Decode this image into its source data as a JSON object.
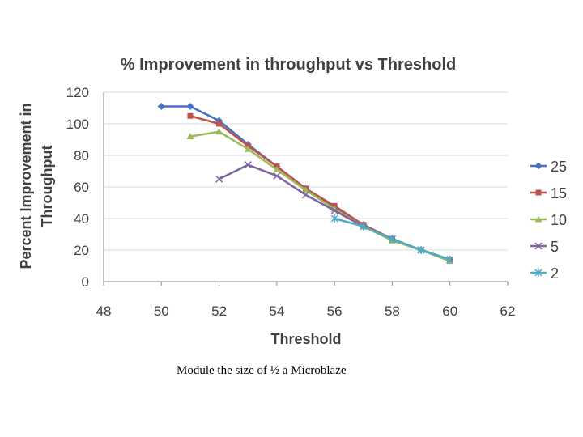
{
  "caption": "Module the size of ½ a Microblaze",
  "colors": {
    "25": "#4472c4",
    "15": "#c0504d",
    "10": "#9bbb59",
    "5": "#8064a2",
    "2": "#4bacc6",
    "grid": "#d9d9d9",
    "text": "#404040"
  },
  "chart_data": {
    "type": "line",
    "title": "% Improvement in throughput vs Threshold",
    "xlabel": "Threshold",
    "ylabel_lines": [
      "Percent Improvement in",
      "Throughput"
    ],
    "xlim": [
      48,
      62
    ],
    "ylim": [
      0,
      120
    ],
    "x_ticks": [
      "48",
      "50",
      "52",
      "54",
      "56",
      "58",
      "60",
      "62"
    ],
    "y_ticks": [
      "0",
      "20",
      "40",
      "60",
      "80",
      "100",
      "120"
    ],
    "grid": "horizontal",
    "legend_position": "right",
    "series": [
      {
        "name": "25",
        "marker": "diamond",
        "points": [
          [
            50,
            111
          ],
          [
            51,
            111
          ],
          [
            52,
            102
          ],
          [
            53,
            87
          ],
          [
            54,
            73
          ],
          [
            55,
            59
          ],
          [
            56,
            47
          ],
          [
            57,
            36
          ],
          [
            58,
            27
          ],
          [
            59,
            20
          ],
          [
            60,
            14
          ]
        ]
      },
      {
        "name": "15",
        "marker": "square",
        "points": [
          [
            51,
            105
          ],
          [
            52,
            100
          ],
          [
            53,
            86
          ],
          [
            54,
            73
          ],
          [
            55,
            59
          ],
          [
            56,
            48
          ],
          [
            57,
            36
          ],
          [
            58,
            27
          ],
          [
            59,
            20
          ],
          [
            60,
            14
          ]
        ]
      },
      {
        "name": "10",
        "marker": "triangle",
        "points": [
          [
            51,
            92
          ],
          [
            52,
            95
          ],
          [
            53,
            84
          ],
          [
            54,
            71
          ],
          [
            55,
            58
          ],
          [
            56,
            46
          ],
          [
            57,
            35
          ],
          [
            58,
            26
          ],
          [
            59,
            20
          ],
          [
            60,
            13
          ]
        ]
      },
      {
        "name": "5",
        "marker": "x",
        "points": [
          [
            52,
            65
          ],
          [
            53,
            74
          ],
          [
            54,
            67
          ],
          [
            55,
            55
          ],
          [
            56,
            45
          ],
          [
            57,
            35
          ],
          [
            58,
            27
          ],
          [
            59,
            20
          ],
          [
            60,
            14
          ]
        ]
      },
      {
        "name": "2",
        "marker": "star",
        "points": [
          [
            56,
            40
          ],
          [
            57,
            35
          ],
          [
            58,
            27
          ],
          [
            59,
            20
          ],
          [
            60,
            14
          ]
        ]
      }
    ]
  }
}
